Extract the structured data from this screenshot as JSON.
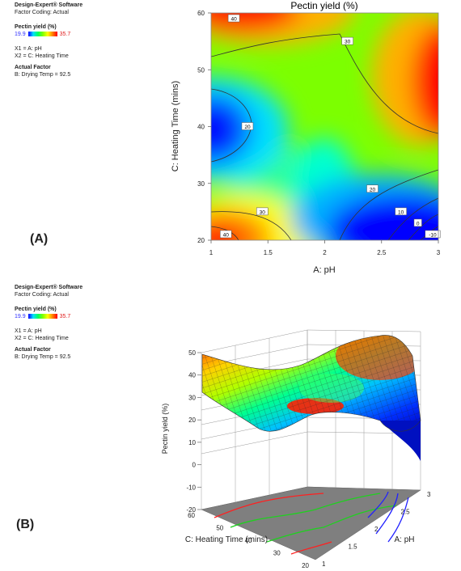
{
  "panelA": {
    "label": "(A)",
    "info": {
      "software": "Design-Expert® Software",
      "coding": "Factor Coding: Actual",
      "response": "Pectin yield (%)",
      "low": "19.9",
      "high": "35.7",
      "x1": "X1 = A: pH",
      "x2": "X2 = C: Heating Time",
      "actual_title": "Actual Factor",
      "actual_value": "B: Drying Temp = 92.5"
    }
  },
  "panelB": {
    "label": "(B)",
    "info": {
      "software": "Design-Expert® Software",
      "coding": "Factor Coding: Actual",
      "response": "Pectin yield (%)",
      "low": "19.9",
      "high": "35.7",
      "x1": "X1 = A: pH",
      "x2": "X2 = C: Heating Time",
      "actual_title": "Actual Factor",
      "actual_value": "B: Drying Temp = 92.5"
    }
  },
  "chart_data": [
    {
      "type": "heatmap",
      "title": "Pectin yield (%)",
      "xlabel": "A: pH",
      "ylabel": "C: Heating Time (mins)",
      "xlim": [
        1,
        3
      ],
      "ylim": [
        20,
        60
      ],
      "x_ticks": [
        "1",
        "1.5",
        "2",
        "2.5",
        "3"
      ],
      "y_ticks": [
        "20",
        "30",
        "40",
        "50",
        "60"
      ],
      "colorscale": [
        "#0000ff",
        "#00e0ff",
        "#00ff60",
        "#ffff00",
        "#ff0000"
      ],
      "contour_labels": [
        {
          "text": "40",
          "x": 1.2,
          "y": 59
        },
        {
          "text": "30",
          "x": 2.2,
          "y": 55
        },
        {
          "text": "20",
          "x": 1.32,
          "y": 40
        },
        {
          "text": "30",
          "x": 1.45,
          "y": 25
        },
        {
          "text": "40",
          "x": 1.13,
          "y": 21
        },
        {
          "text": "20",
          "x": 2.42,
          "y": 29
        },
        {
          "text": "10",
          "x": 2.67,
          "y": 25
        },
        {
          "text": "0",
          "x": 2.82,
          "y": 23
        },
        {
          "text": "-10",
          "x": 2.95,
          "y": 21
        }
      ]
    },
    {
      "type": "area",
      "zlabel": "Pectin yield (%)",
      "xlabel": "A: pH",
      "ylabel": "C: Heating Time (mins)",
      "x_ticks": [
        "1",
        "1.5",
        "2",
        "2.5",
        "3"
      ],
      "y_ticks": [
        "20",
        "30",
        "40",
        "50",
        "60"
      ],
      "z_ticks": [
        "-20",
        "-10",
        "0",
        "10",
        "20",
        "30",
        "40",
        "50"
      ],
      "zlim": [
        -20,
        50
      ]
    }
  ]
}
